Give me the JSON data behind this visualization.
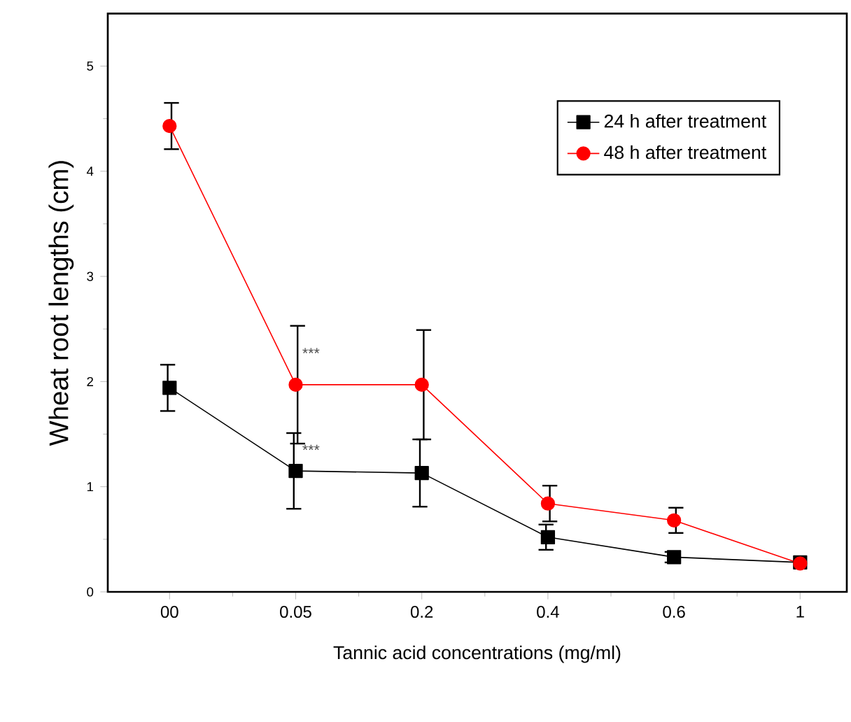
{
  "chart_data": {
    "type": "line",
    "xlabel": "Tannic acid concentrations (mg/ml)",
    "ylabel": "Wheat root lengths (cm)",
    "categories": [
      "00",
      "0.05",
      "0.2",
      "0.4",
      "0.6",
      "1"
    ],
    "series": [
      {
        "name": "24 h after treatment",
        "color": "#000000",
        "marker": "square",
        "values": [
          1.94,
          1.15,
          1.13,
          0.52,
          0.33,
          0.28
        ],
        "errors": [
          0.22,
          0.36,
          0.32,
          0.12,
          0.05,
          null
        ]
      },
      {
        "name": "48 h after treatment",
        "color": "#ff0000",
        "marker": "circle",
        "values": [
          4.43,
          1.97,
          1.97,
          0.84,
          0.68,
          0.27
        ],
        "errors": [
          0.22,
          0.56,
          0.52,
          0.17,
          0.12,
          null
        ]
      }
    ],
    "ylim": [
      0,
      5.5
    ],
    "yticks": [
      0,
      1,
      2,
      3,
      4,
      5
    ],
    "annotations": [
      {
        "text": "***",
        "x": "0.05",
        "y": 2.27
      },
      {
        "text": "***",
        "x": "0.05",
        "y": 1.35
      }
    ],
    "legend": "top right",
    "grid": false,
    "line_style": "solid"
  }
}
